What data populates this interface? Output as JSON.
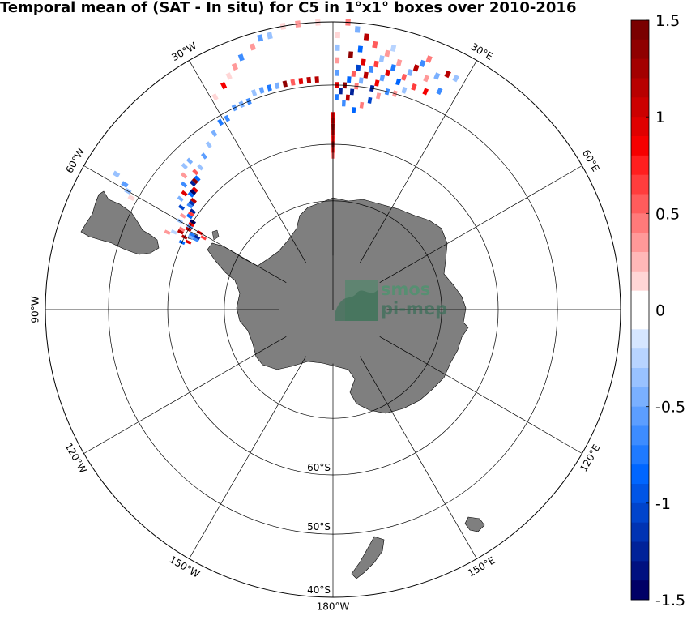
{
  "title": "Temporal mean of (SAT - In situ) for C5 in 1°x1° boxes over 2010-2016",
  "map": {
    "projection": "south polar stereographic",
    "longitude_labels": [
      {
        "lon": 0,
        "text": ""
      },
      {
        "lon": -30,
        "text": "30°W"
      },
      {
        "lon": 30,
        "text": "30°E"
      },
      {
        "lon": -60,
        "text": "60°W"
      },
      {
        "lon": 60,
        "text": "60°E"
      },
      {
        "lon": -90,
        "text": "90°W"
      },
      {
        "lon": -120,
        "text": "120°W"
      },
      {
        "lon": 120,
        "text": "120°E"
      },
      {
        "lon": -150,
        "text": "150°W"
      },
      {
        "lon": 150,
        "text": "150°E"
      },
      {
        "lon": 180,
        "text": "180°W"
      }
    ],
    "latitude_labels": [
      {
        "lat": -60,
        "text": "60°S"
      },
      {
        "lat": -50,
        "text": "50°S"
      },
      {
        "lat": -40,
        "text": "40°S"
      }
    ],
    "land_color": "#7f7f7f",
    "grid_color": "#000000"
  },
  "watermark": {
    "line1": "smos",
    "line2": "pi-mep"
  },
  "colorbar": {
    "min": -1.5,
    "max": 1.5,
    "ticks": [
      {
        "value": 1.5,
        "text": "1.5"
      },
      {
        "value": 1,
        "text": "1"
      },
      {
        "value": 0.5,
        "text": "0.5"
      },
      {
        "value": 0,
        "text": "0"
      },
      {
        "value": -0.5,
        "text": "-0.5"
      },
      {
        "value": -1,
        "text": "-1"
      },
      {
        "value": -1.5,
        "text": "-1.5"
      }
    ],
    "colors_top_to_bottom": [
      "#7a0000",
      "#8f0000",
      "#a30000",
      "#b80000",
      "#cc0000",
      "#e00000",
      "#f50000",
      "#ff1f1f",
      "#ff3d3d",
      "#ff5c5c",
      "#ff7a7a",
      "#ff9999",
      "#ffb8b8",
      "#ffd6d6",
      "#ffffff",
      "#ffffff",
      "#d6e6ff",
      "#b8d4ff",
      "#99c2ff",
      "#7ab0ff",
      "#5c9eff",
      "#3d8cff",
      "#1f7aff",
      "#0066ff",
      "#0055e6",
      "#0044cc",
      "#0033b3",
      "#002299",
      "#001180",
      "#000066"
    ]
  },
  "chart_data": {
    "type": "heatmap",
    "title": "Temporal mean of (SAT - In situ) for C5 in 1°x1° boxes over 2010-2016",
    "variable": "SAT - In situ",
    "value_range": [
      -1.5,
      1.5
    ],
    "cells_lon_lat_value": [
      [
        -3,
        -40,
        0.2
      ],
      [
        -7,
        -40,
        0.3
      ],
      [
        -10,
        -40,
        0.1
      ],
      [
        -13,
        -41,
        -0.3
      ],
      [
        -15,
        -41,
        -0.5
      ],
      [
        -17,
        -42,
        0.4
      ],
      [
        -20,
        -43,
        -0.6
      ],
      [
        -22,
        -44,
        0.3
      ],
      [
        -24,
        -45,
        0.2
      ],
      [
        -26,
        -46,
        0.8
      ],
      [
        -29,
        -47,
        0.1
      ],
      [
        -4,
        -49,
        1.1
      ],
      [
        -6,
        -49,
        1.2
      ],
      [
        -8,
        -49,
        0.9
      ],
      [
        -10,
        -49,
        0.6
      ],
      [
        -12,
        -49,
        1.3
      ],
      [
        -14,
        -49,
        -0.4
      ],
      [
        -16,
        -49,
        -0.7
      ],
      [
        -18,
        -49,
        -0.5
      ],
      [
        -20,
        -49,
        -0.3
      ],
      [
        -22,
        -50,
        -0.6
      ],
      [
        -24,
        -50,
        -0.4
      ],
      [
        -26,
        -50,
        -0.5
      ],
      [
        -29,
        -51,
        -0.6
      ],
      [
        -31,
        -51,
        -0.7
      ],
      [
        -34,
        -52,
        -0.4
      ],
      [
        -37,
        -53,
        -0.3
      ],
      [
        -40,
        -54,
        -0.5
      ],
      [
        -43,
        -55,
        -0.3
      ],
      [
        -45,
        -55,
        0.6
      ],
      [
        -46,
        -56,
        -0.9
      ],
      [
        -47,
        -56,
        1.3
      ],
      [
        -48,
        -56,
        -1.2
      ],
      [
        -49,
        -57,
        0.9
      ],
      [
        -50,
        -57,
        -1.4
      ],
      [
        -51,
        -57,
        -0.8
      ],
      [
        -52,
        -58,
        1.2
      ],
      [
        -53,
        -58,
        -1.1
      ],
      [
        -54,
        -58,
        -0.6
      ],
      [
        -55,
        -59,
        -1.3
      ],
      [
        -56,
        -59,
        0.7
      ],
      [
        -57,
        -59,
        -0.9
      ],
      [
        -58,
        -60,
        -1.4
      ],
      [
        -59,
        -60,
        0.8
      ],
      [
        -60,
        -60,
        -0.5
      ],
      [
        -61,
        -60,
        1.1
      ],
      [
        -62,
        -61,
        -0.7
      ],
      [
        -44,
        -53,
        -0.4
      ],
      [
        -46,
        -53,
        -0.3
      ],
      [
        -48,
        -54,
        0.3
      ],
      [
        -50,
        -55,
        -0.6
      ],
      [
        -52,
        -56,
        0.9
      ],
      [
        -54,
        -56,
        -0.4
      ],
      [
        -56,
        -57,
        -1.0
      ],
      [
        -58,
        -58,
        0.4
      ],
      [
        -60,
        -58,
        -0.3
      ],
      [
        -59,
        -47,
        -0.5
      ],
      [
        -60,
        -48,
        -0.3
      ],
      [
        -61,
        -49,
        0.2
      ],
      [
        -58,
        -45,
        -0.3
      ],
      [
        -65,
        -57,
        0.4
      ],
      [
        -64,
        -58,
        -0.2
      ],
      [
        -63,
        -59,
        1.1
      ],
      [
        -62,
        -59,
        0.5
      ],
      [
        -66,
        -60,
        -0.9
      ],
      [
        -64,
        -60,
        1.2
      ],
      [
        -63,
        -61,
        -0.4
      ],
      [
        -65,
        -61,
        0.9
      ],
      [
        -62,
        -62,
        -1.2
      ],
      [
        -60,
        -62,
        1.0
      ],
      [
        -61,
        -63,
        0.7
      ],
      [
        -63,
        -62,
        -0.6
      ],
      [
        0,
        -55,
        0.9
      ],
      [
        0,
        -56,
        1.2
      ],
      [
        0,
        -57,
        1.4
      ],
      [
        0,
        -58,
        1.1
      ],
      [
        0,
        -59,
        0.8
      ],
      [
        0,
        -60,
        1.3
      ],
      [
        0,
        -61,
        1.0
      ],
      [
        0,
        -62,
        0.6
      ],
      [
        1,
        -42,
        0.2
      ],
      [
        1,
        -44,
        -0.3
      ],
      [
        1,
        -46,
        0.4
      ],
      [
        1,
        -48,
        -0.5
      ],
      [
        1,
        -50,
        0.9
      ],
      [
        1,
        -52,
        -0.7
      ],
      [
        2,
        -51,
        -1.2
      ],
      [
        3,
        -50,
        1.3
      ],
      [
        4,
        -49,
        -0.8
      ],
      [
        5,
        -48,
        0.6
      ],
      [
        6,
        -47,
        -1.0
      ],
      [
        7,
        -46,
        0.9
      ],
      [
        3,
        -53,
        -0.6
      ],
      [
        4,
        -52,
        1.1
      ],
      [
        5,
        -51,
        -1.3
      ],
      [
        6,
        -50,
        0.5
      ],
      [
        7,
        -49,
        -0.4
      ],
      [
        8,
        -48,
        1.2
      ],
      [
        9,
        -47,
        -0.6
      ],
      [
        10,
        -46,
        0.7
      ],
      [
        11,
        -45,
        -0.3
      ],
      [
        12,
        -44,
        0.4
      ],
      [
        13,
        -43,
        -0.2
      ],
      [
        9,
        -43,
        0.6
      ],
      [
        10,
        -50,
        -1.3
      ],
      [
        11,
        -49,
        0.8
      ],
      [
        12,
        -48,
        -0.5
      ],
      [
        13,
        -47,
        1.0
      ],
      [
        14,
        -46,
        -0.7
      ],
      [
        15,
        -45,
        0.3
      ],
      [
        16,
        -48,
        -0.9
      ],
      [
        17,
        -47,
        0.6
      ],
      [
        18,
        -46,
        -0.4
      ],
      [
        19,
        -45,
        1.2
      ],
      [
        20,
        -44,
        -0.6
      ],
      [
        21,
        -43,
        0.5
      ],
      [
        22,
        -46,
        0.3
      ],
      [
        24,
        -45,
        -0.4
      ],
      [
        26,
        -44,
        1.2
      ],
      [
        28,
        -44,
        -0.3
      ],
      [
        26,
        -47,
        -0.6
      ],
      [
        23,
        -48,
        0.8
      ],
      [
        6,
        -54,
        -0.8
      ],
      [
        8,
        -53,
        0.5
      ],
      [
        10,
        -52,
        -1.0
      ],
      [
        12,
        -51,
        0.3
      ],
      [
        14,
        -50,
        -0.6
      ],
      [
        16,
        -50,
        0.4
      ],
      [
        18,
        -49,
        -0.3
      ],
      [
        20,
        -48,
        0.7
      ],
      [
        7,
        -42,
        1.1
      ],
      [
        5,
        -41,
        -0.4
      ],
      [
        3,
        -40,
        0.5
      ],
      [
        6,
        -44,
        -0.9
      ],
      [
        4,
        -45,
        1.3
      ]
    ]
  }
}
